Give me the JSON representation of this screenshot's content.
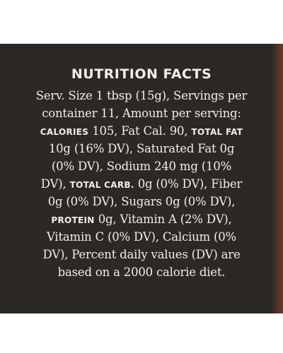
{
  "label": {
    "title": "NUTRITION FACTS",
    "lines": [
      [
        {
          "t": "Serv. Size 1 tbsp (15g), Servings per"
        }
      ],
      [
        {
          "t": "container 11, Amount per serving:"
        }
      ],
      [
        {
          "t": "CALORIES",
          "sc": true
        },
        {
          "t": " 105, Fat Cal. 90, "
        },
        {
          "t": "TOTAL FAT",
          "sc": true
        }
      ],
      [
        {
          "t": "10g (16% DV), Saturated Fat 0g"
        }
      ],
      [
        {
          "t": "(0% DV), Sodium 240 mg (10%"
        }
      ],
      [
        {
          "t": "DV), "
        },
        {
          "t": "TOTAL CARB.",
          "sc": true
        },
        {
          "t": " 0g (0% DV), Fiber"
        }
      ],
      [
        {
          "t": "0g (0% DV), Sugars 0g (0% DV),"
        }
      ],
      [
        {
          "t": "PROTEIN",
          "sc": true
        },
        {
          "t": " 0g, Vitamin A (2% DV),"
        }
      ],
      [
        {
          "t": "Vitamin C (0% DV), Calcium (0%"
        }
      ],
      [
        {
          "t": "DV), Percent daily values (DV) are"
        }
      ],
      [
        {
          "t": "based on a 2000 calorie diet."
        }
      ]
    ]
  },
  "colors": {
    "panel_background": "#2c2826",
    "text": "#f2efe9",
    "page_background": "#ffffff"
  }
}
